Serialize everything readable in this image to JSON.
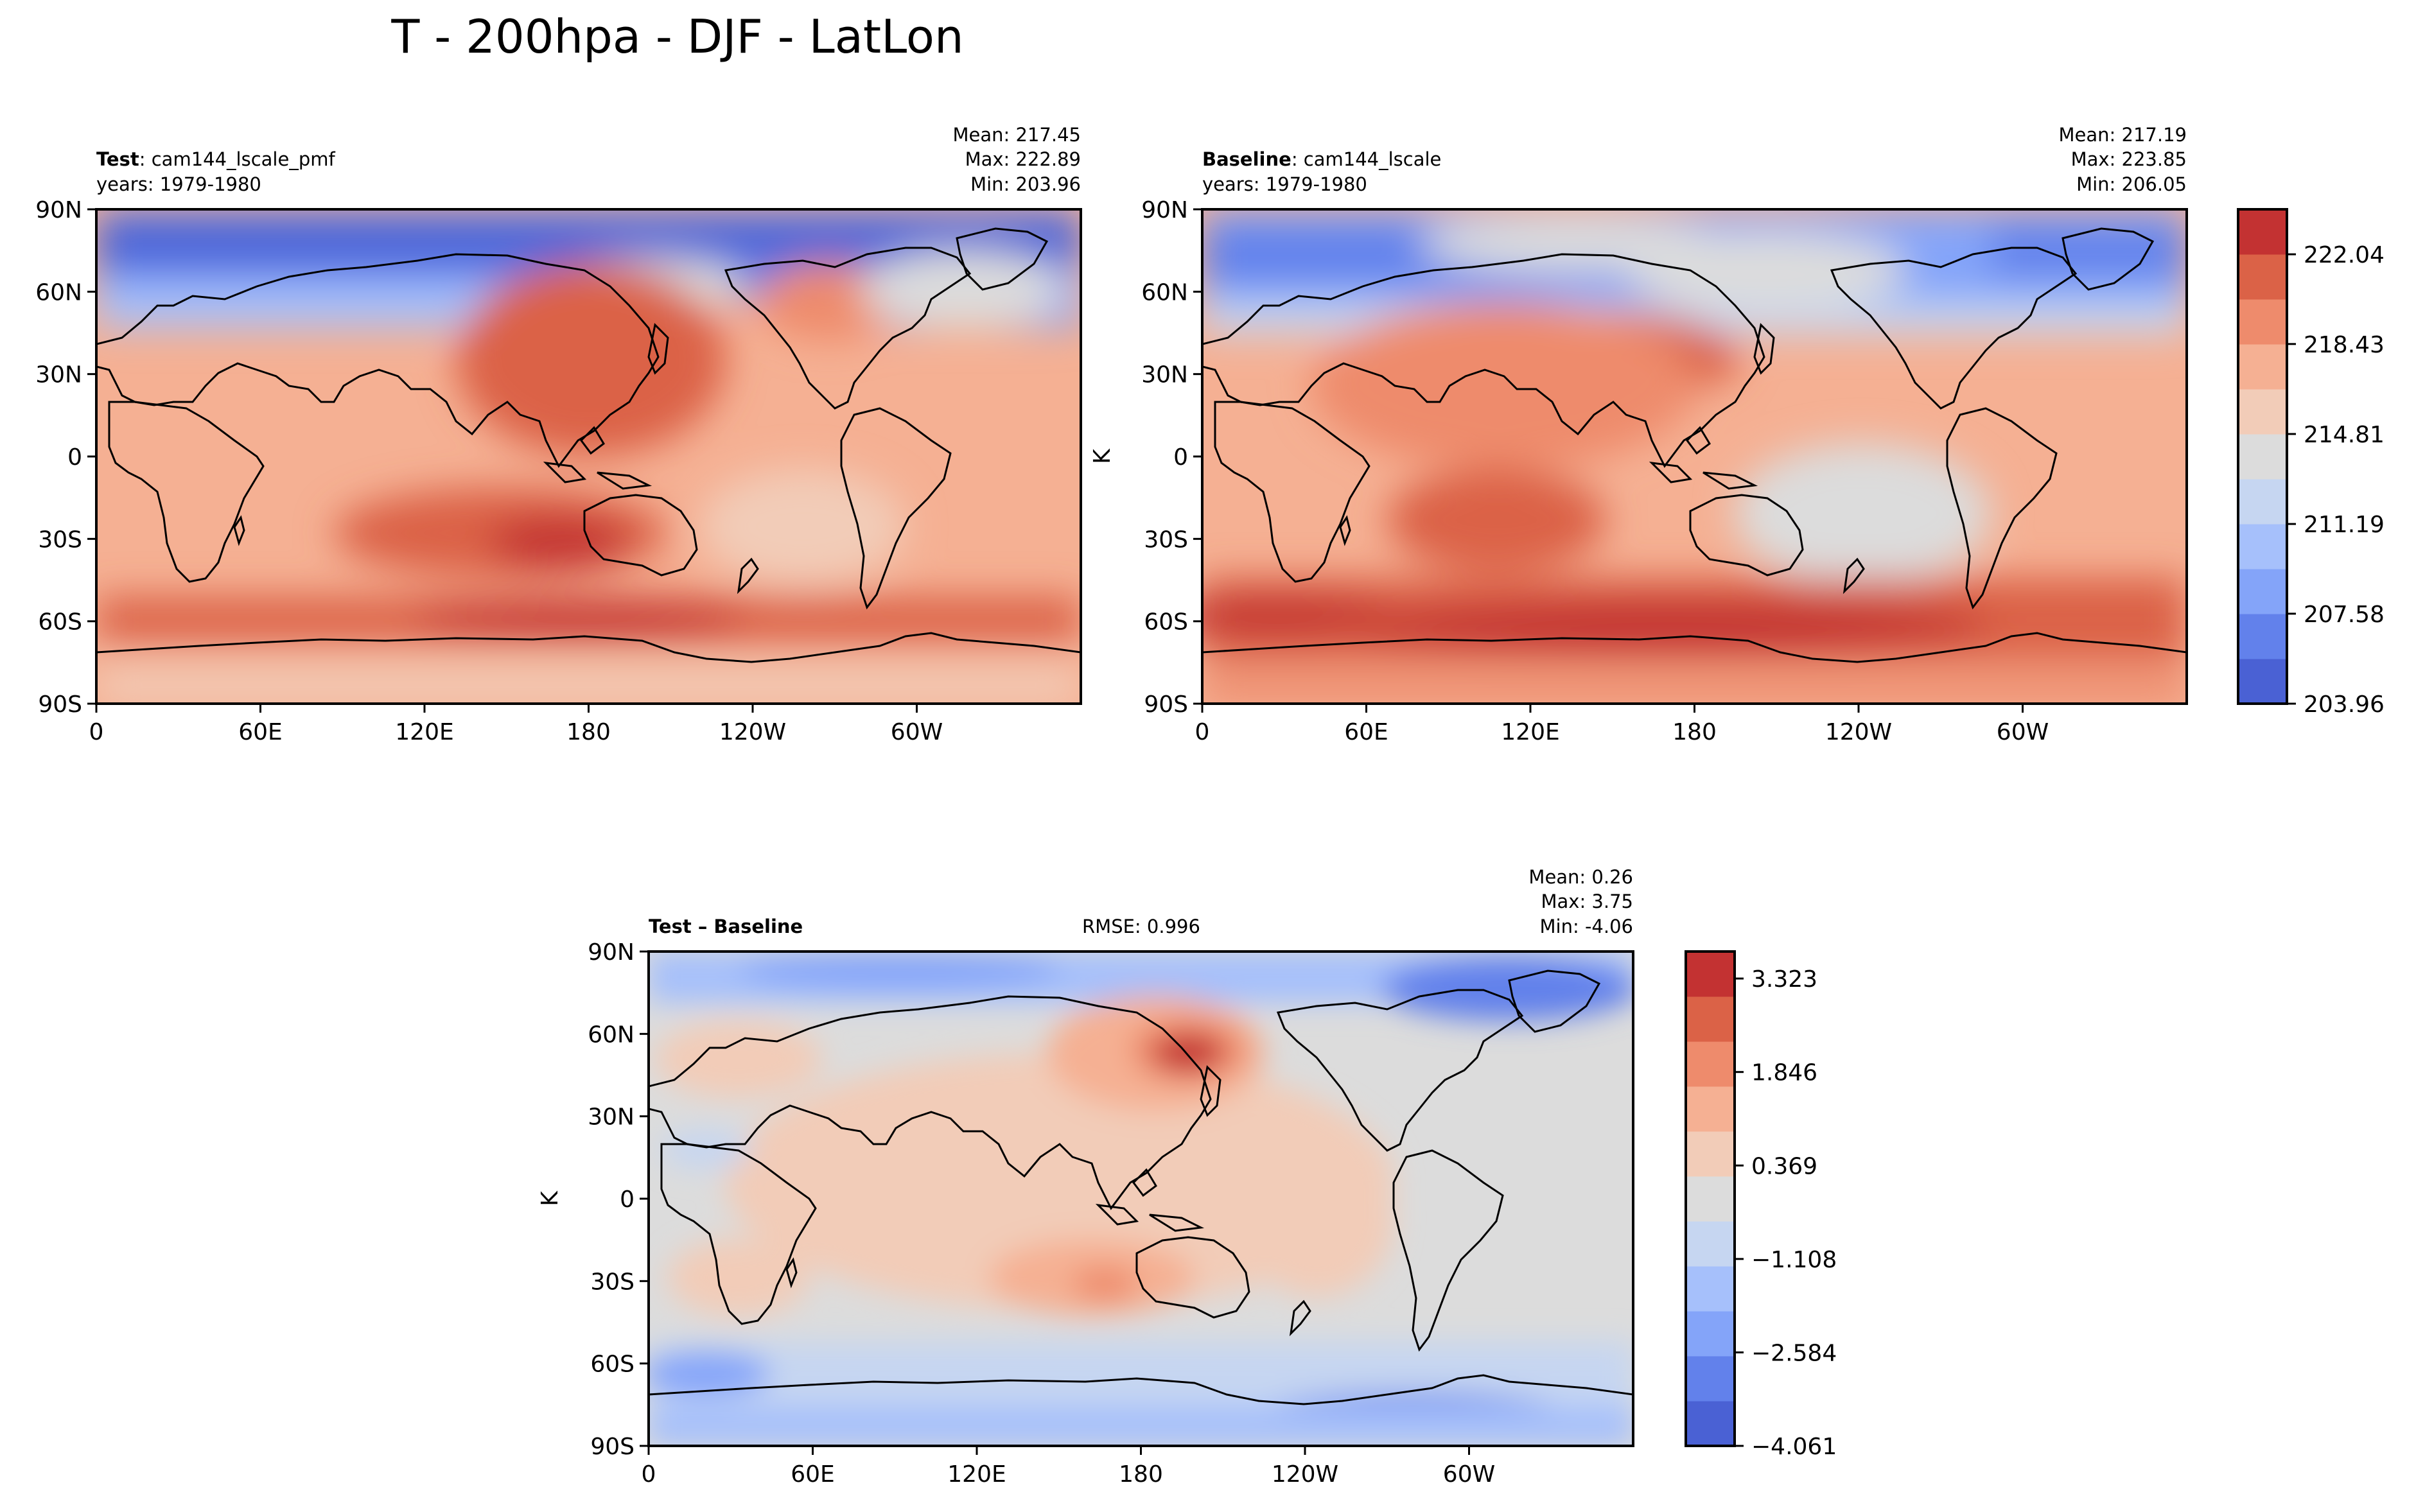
{
  "figure_title": "T - 200hpa - DJF - LatLon",
  "chart_data": [
    {
      "id": "test",
      "type": "heatmap",
      "title_bold": "Test",
      "title_rest": ": cam144_lscale_pmf",
      "years": "years: 1979-1980",
      "stats": [
        "Mean: 217.45",
        "Max: 222.89",
        "Min: 203.96"
      ],
      "ylabel": "",
      "xticks": [
        "0",
        "60E",
        "120E",
        "180",
        "120W",
        "60W"
      ],
      "yticks": [
        "90N",
        "60N",
        "30N",
        "0",
        "30S",
        "60S",
        "90S"
      ],
      "xlim": [
        0,
        360
      ],
      "ylim": [
        -90,
        90
      ]
    },
    {
      "id": "baseline",
      "type": "heatmap",
      "title_bold": "Baseline",
      "title_rest": ": cam144_lscale",
      "years": "years: 1979-1980",
      "stats": [
        "Mean: 217.19",
        "Max: 223.85",
        "Min: 206.05"
      ],
      "ylabel": "K",
      "xticks": [
        "0",
        "60E",
        "120E",
        "180",
        "120W",
        "60W"
      ],
      "yticks": [
        "90N",
        "60N",
        "30N",
        "0",
        "30S",
        "60S",
        "90S"
      ],
      "xlim": [
        0,
        360
      ],
      "ylim": [
        -90,
        90
      ],
      "colorbar": {
        "ticks": [
          "222.04",
          "218.43",
          "214.81",
          "211.19",
          "207.58",
          "203.96"
        ],
        "range": [
          203.96,
          223.85
        ],
        "colors": [
          "#4a61d4",
          "#6281eb",
          "#84a4f9",
          "#a6c0fb",
          "#c6d6f1",
          "#dcdcdc",
          "#f2ccb8",
          "#f5b093",
          "#ee8b6c",
          "#db6247",
          "#c33232"
        ]
      }
    },
    {
      "id": "diff",
      "type": "heatmap",
      "title_bold": "Test – Baseline",
      "rmse": "RMSE: 0.996",
      "stats": [
        "Mean:  0.26",
        "Max:  3.75",
        "Min: -4.06"
      ],
      "ylabel": "K",
      "xticks": [
        "0",
        "60E",
        "120E",
        "180",
        "120W",
        "60W"
      ],
      "yticks": [
        "90N",
        "60N",
        "30N",
        "0",
        "30S",
        "60S",
        "90S"
      ],
      "xlim": [
        0,
        360
      ],
      "ylim": [
        -90,
        90
      ],
      "colorbar": {
        "ticks": [
          "3.323",
          "1.846",
          "0.369",
          "−1.108",
          "−2.584",
          "−4.061"
        ],
        "range": [
          -4.061,
          3.75
        ],
        "colors": [
          "#4a61d4",
          "#6281eb",
          "#84a4f9",
          "#a6c0fb",
          "#c6d6f1",
          "#dcdcdc",
          "#f2ccb8",
          "#f5b093",
          "#ee8b6c",
          "#db6247",
          "#c33232"
        ]
      }
    }
  ]
}
